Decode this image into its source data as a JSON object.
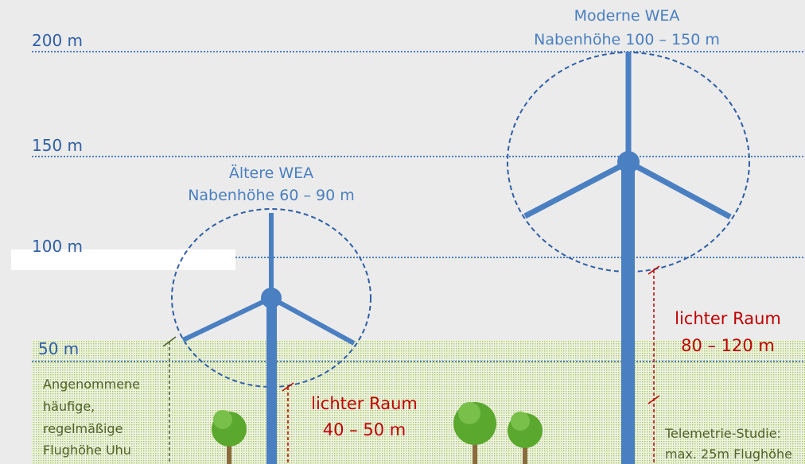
{
  "height_labels": [
    "200 m",
    "150 m",
    "100 m",
    "50 m"
  ],
  "old_turbine": {
    "title": "Ältere WEA",
    "hub_height": "Nabenhöhe 60 – 90 m",
    "clearance": [
      "lichter Raum",
      "40 – 50 m"
    ]
  },
  "modern_turbine": {
    "title": "Moderne WEA",
    "hub_height": "Nabenhöhe 100 – 150 m",
    "clearance": [
      "lichter Raum",
      "80 – 120 m"
    ]
  },
  "owl_note": [
    "Angenommene",
    "häufige,",
    "regelmäßige",
    "Flughöhe Uhu"
  ],
  "telemetry_note": [
    "Telemetrie-Studie:",
    "max. 25m Flughöhe"
  ]
}
